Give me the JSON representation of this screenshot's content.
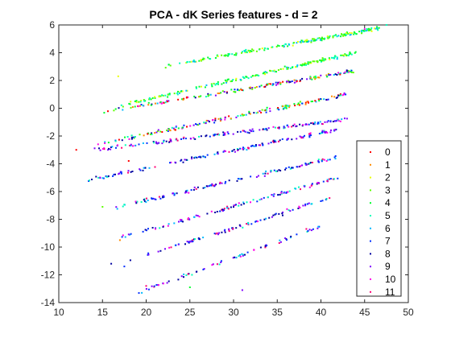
{
  "chart_data": {
    "type": "scatter",
    "title": "PCA - dK Series features - d = 2",
    "xlabel": "",
    "ylabel": "",
    "xlim": [
      10,
      50
    ],
    "ylim": [
      -14,
      6
    ],
    "xticks": [
      "10",
      "15",
      "20",
      "25",
      "30",
      "35",
      "40",
      "45",
      "50"
    ],
    "yticks": [
      "-14",
      "-12",
      "-10",
      "-8",
      "-6",
      "-4",
      "-2",
      "0",
      "2",
      "4",
      "6"
    ],
    "grid": false,
    "legend_position": "bottom-right",
    "series": [
      {
        "name": "0",
        "color": "#ff0000"
      },
      {
        "name": "1",
        "color": "#ff8b00"
      },
      {
        "name": "2",
        "color": "#e8ff00"
      },
      {
        "name": "3",
        "color": "#5dff00"
      },
      {
        "name": "4",
        "color": "#00ff2e"
      },
      {
        "name": "5",
        "color": "#00ffb9"
      },
      {
        "name": "6",
        "color": "#00b9ff"
      },
      {
        "name": "7",
        "color": "#002eff"
      },
      {
        "name": "8",
        "color": "#0000a0"
      },
      {
        "name": "9",
        "color": "#8000ff"
      },
      {
        "name": "10",
        "color": "#ff00e8"
      },
      {
        "name": "11",
        "color": "#ff0074"
      }
    ],
    "point_structure": {
      "note_on_data": "approximate point cloud arranged in parallel diagonal bands",
      "bands": [
        {
          "x_range": [
            22,
            47
          ],
          "y_at_start": 3.0,
          "y_at_end": 5.8
        },
        {
          "x_range": [
            17,
            44
          ],
          "y_at_start": 0.2,
          "y_at_end": 4.0
        },
        {
          "x_range": [
            15,
            44
          ],
          "y_at_start": -0.3,
          "y_at_end": 2.7
        },
        {
          "x_range": [
            15,
            43
          ],
          "y_at_start": -2.5,
          "y_at_end": 1.0
        },
        {
          "x_range": [
            14,
            43
          ],
          "y_at_start": -3.0,
          "y_at_end": -0.8
        },
        {
          "x_range": [
            13,
            42
          ],
          "y_at_start": -5.2,
          "y_at_end": -1.5
        },
        {
          "x_range": [
            16,
            42
          ],
          "y_at_start": -7.2,
          "y_at_end": -3.5
        },
        {
          "x_range": [
            17,
            42
          ],
          "y_at_start": -9.3,
          "y_at_end": -5.0
        },
        {
          "x_range": [
            18,
            41
          ],
          "y_at_start": -11.0,
          "y_at_end": -6.5
        },
        {
          "x_range": [
            19,
            40
          ],
          "y_at_start": -13.3,
          "y_at_end": -8.5
        }
      ]
    }
  }
}
